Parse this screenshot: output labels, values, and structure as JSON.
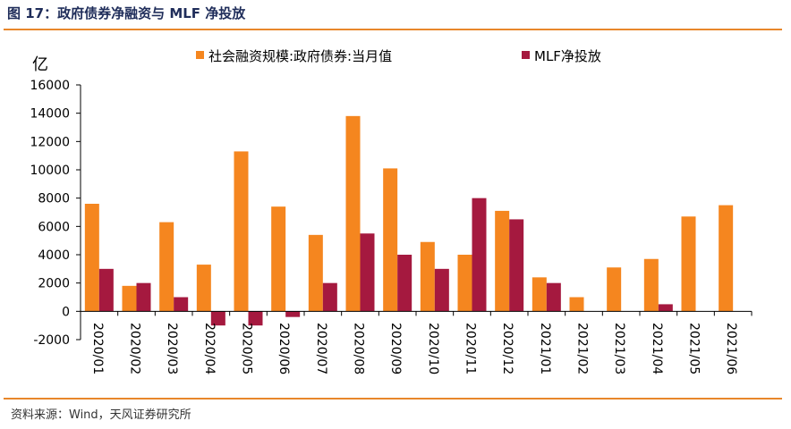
{
  "figure_title": "图 17：政府债券净融资与 MLF 净投放",
  "source": "资料来源：Wind，天风证券研究所",
  "colors": {
    "accent": "#e8872b",
    "title": "#1f2d5a"
  },
  "chart_data": {
    "type": "bar",
    "ylabel": "亿",
    "ylim": [
      -2000,
      16000
    ],
    "yticks": [
      -2000,
      0,
      2000,
      4000,
      6000,
      8000,
      10000,
      12000,
      14000,
      16000
    ],
    "grid": false,
    "legend_position": "top",
    "categories": [
      "2020/01",
      "2020/02",
      "2020/03",
      "2020/04",
      "2020/05",
      "2020/06",
      "2020/07",
      "2020/08",
      "2020/09",
      "2020/10",
      "2020/11",
      "2020/12",
      "2021/01",
      "2021/02",
      "2021/03",
      "2021/04",
      "2021/05",
      "2021/06"
    ],
    "series": [
      {
        "name": "社会融资规模:政府债券:当月值",
        "color": "#f5861f",
        "values": [
          7600,
          1800,
          6300,
          3300,
          11300,
          7400,
          5400,
          13800,
          10100,
          4900,
          4000,
          7100,
          2400,
          1000,
          3100,
          3700,
          6700,
          7500
        ]
      },
      {
        "name": "MLF净投放",
        "color": "#a5193f",
        "values": [
          3000,
          2000,
          1000,
          -1000,
          -1000,
          -400,
          2000,
          5500,
          4000,
          3000,
          8000,
          6500,
          2000,
          null,
          null,
          500,
          null,
          null
        ]
      }
    ]
  }
}
